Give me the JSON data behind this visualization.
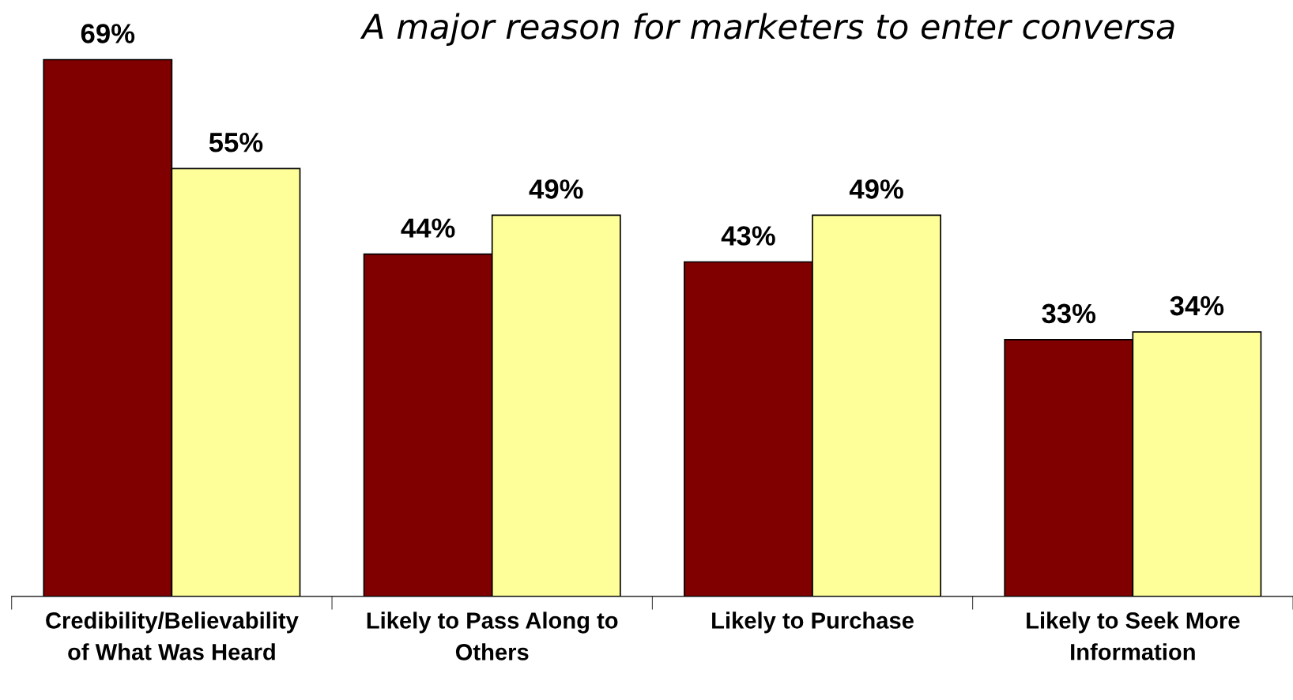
{
  "chart_data": {
    "type": "bar",
    "title": "A major reason for marketers to enter conversa",
    "categories": [
      "Credibility/Believability\nof What Was Heard",
      "Likely to Pass Along to\nOthers",
      "Likely to Purchase",
      "Likely to Seek More\nInformation"
    ],
    "series": [
      {
        "color": "#800000",
        "values": [
          69,
          44,
          43,
          33
        ],
        "value_labels": [
          "69%",
          "44%",
          "43%",
          "33%"
        ]
      },
      {
        "color": "#ffff99",
        "values": [
          55,
          49,
          49,
          34
        ],
        "value_labels": [
          "55%",
          "49%",
          "49%",
          "34%"
        ]
      }
    ],
    "grid": false
  }
}
